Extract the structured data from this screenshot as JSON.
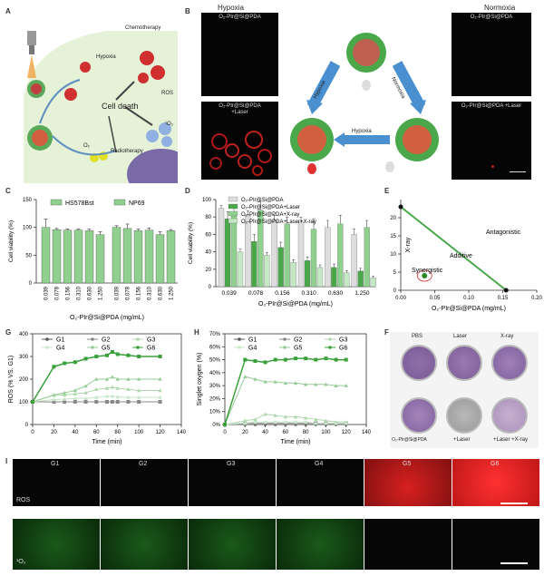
{
  "panels": {
    "A": "A",
    "B": "B",
    "C": "C",
    "D": "D",
    "E": "E",
    "F": "F",
    "G": "G",
    "H": "H",
    "I": "I"
  },
  "panelA": {
    "chemotherapy": "Chemotherapy",
    "hypoxia": "Hypoxia",
    "ros": "ROS",
    "cell_death": "Cell death",
    "singlet": "¹O₂",
    "o2": "O₂",
    "radiotherapy": "Radiotherapy"
  },
  "panelB": {
    "hypoxia_title": "Hypoxia",
    "normoxia_title": "Normoxia",
    "img1": "O₂-PIr@Si@PDA",
    "img2": "O₂-PIr@Si@PDA +Laser",
    "img3": "O₂-PIr@Si@PDA",
    "img4": "O₂-PIr@Si@PDA +Laser",
    "arrow_hypoxia": "Hypoxia",
    "arrow_normoxia": "Normoxia",
    "arrow_bottom": "Hypoxia"
  },
  "colors": {
    "green_dark": "#4aa84a",
    "green_mid": "#8fd08f",
    "green_light": "#c4e7c4",
    "gray_bar": "#dddddd",
    "arrow_blue": "#4a90d0",
    "ros_red": "#e02020",
    "o2_green": "#2a8a2a"
  },
  "chart_data": [
    {
      "panel": "C",
      "type": "bar",
      "ylabel": "Cell viability (%)",
      "xlabel": "O₂-PIr@Si@PDA   (mg/mL)",
      "ylim": [
        0,
        150
      ],
      "yticks": [
        "0",
        "50",
        "100",
        "150"
      ],
      "legend": [
        "HS578Bst",
        "NP69"
      ],
      "groups": [
        {
          "name": "HS578Bst",
          "categories": [
            "0.039",
            "0.078",
            "0.156",
            "0.310",
            "0.630",
            "1.250"
          ],
          "values": [
            100,
            96,
            95,
            95,
            94,
            87
          ],
          "errors": [
            15,
            2,
            2,
            2,
            3,
            5
          ]
        },
        {
          "name": "NP69",
          "categories": [
            "0.039",
            "0.078",
            "0.156",
            "0.310",
            "0.630",
            "1.250"
          ],
          "values": [
            100,
            98,
            94,
            95,
            87,
            94
          ],
          "errors": [
            3,
            8,
            3,
            4,
            5,
            2
          ]
        }
      ]
    },
    {
      "panel": "D",
      "type": "bar",
      "ylabel": "Cell viability (%)",
      "xlabel": "O₂-PIr@Si@PDA (mg/mL)",
      "ylim": [
        0,
        100
      ],
      "yticks": [
        "0",
        "20",
        "40",
        "60",
        "80",
        "100"
      ],
      "categories": [
        "0.039",
        "0.078",
        "0.156",
        "0.310",
        "0.630",
        "1.250"
      ],
      "series": [
        {
          "name": "O₂-PIr@Si@PDA",
          "values": [
            90,
            82,
            76,
            74,
            68,
            60
          ],
          "errors": [
            3,
            5,
            6,
            6,
            8,
            6
          ]
        },
        {
          "name": "O₂-PIr@Si@PDA+Laser",
          "values": [
            78,
            52,
            45,
            30,
            22,
            18
          ],
          "errors": [
            8,
            8,
            6,
            4,
            4,
            3
          ]
        },
        {
          "name": "O₂-PIr@Si@PDA+X-ray",
          "values": [
            82,
            88,
            72,
            66,
            72,
            68
          ],
          "errors": [
            10,
            10,
            8,
            12,
            10,
            8
          ]
        },
        {
          "name": "O₂-PIr@Si@PDA+Laser+X-ray",
          "values": [
            40,
            36,
            28,
            22,
            16,
            10
          ],
          "errors": [
            3,
            3,
            3,
            3,
            2,
            2
          ]
        }
      ]
    },
    {
      "panel": "E",
      "type": "line",
      "xlabel": "O₂-PIr@Si@PDA (mg/mL)",
      "ylabel": "X-ray",
      "xlim": [
        0,
        0.2
      ],
      "ylim": [
        0,
        25
      ],
      "xticks": [
        "0.00",
        "0.05",
        "0.10",
        "0.15",
        "0.20"
      ],
      "yticks": [
        "0",
        "5",
        "10",
        "15",
        "20"
      ],
      "line": {
        "x": [
          0.0,
          0.155
        ],
        "y": [
          23,
          0
        ]
      },
      "point": {
        "x": 0.035,
        "y": 4
      },
      "annotations": [
        "Antagonistic",
        "Additive",
        "Synergistic"
      ]
    },
    {
      "panel": "G",
      "type": "line",
      "xlabel": "Time (min)",
      "ylabel": "ROS (% VS. G1)",
      "xlim": [
        0,
        140
      ],
      "ylim": [
        0,
        400
      ],
      "xticks": [
        "0",
        "20",
        "40",
        "60",
        "80",
        "100",
        "120",
        "140"
      ],
      "yticks": [
        "0",
        "100",
        "200",
        "300",
        "400"
      ],
      "x": [
        0,
        20,
        30,
        40,
        50,
        60,
        70,
        75,
        80,
        90,
        100,
        120
      ],
      "series": [
        {
          "name": "G1",
          "values": [
            100,
            100,
            100,
            100,
            100,
            100,
            100,
            100,
            100,
            100,
            100,
            100
          ]
        },
        {
          "name": "G2",
          "values": [
            100,
            100,
            100,
            100,
            100,
            100,
            100,
            100,
            100,
            100,
            100,
            100
          ]
        },
        {
          "name": "G3",
          "values": [
            100,
            130,
            130,
            135,
            140,
            155,
            160,
            165,
            160,
            155,
            150,
            150
          ]
        },
        {
          "name": "G4",
          "values": [
            100,
            110,
            112,
            115,
            115,
            120,
            125,
            125,
            122,
            120,
            120,
            120
          ]
        },
        {
          "name": "G5",
          "values": [
            100,
            130,
            140,
            150,
            170,
            200,
            200,
            210,
            200,
            200,
            200,
            200
          ]
        },
        {
          "name": "G6",
          "values": [
            100,
            255,
            270,
            275,
            290,
            300,
            305,
            320,
            310,
            305,
            300,
            300
          ]
        }
      ]
    },
    {
      "panel": "H",
      "type": "line",
      "xlabel": "Time (min)",
      "ylabel": "Singlet oxygen (%)",
      "xlim": [
        0,
        140
      ],
      "ylim": [
        0,
        70
      ],
      "xticks": [
        "0",
        "20",
        "40",
        "60",
        "80",
        "100",
        "120",
        "140"
      ],
      "yticks": [
        "0%",
        "10%",
        "20%",
        "30%",
        "40%",
        "50%",
        "60%",
        "70%"
      ],
      "x": [
        0,
        20,
        30,
        40,
        50,
        60,
        70,
        80,
        90,
        100,
        110,
        120
      ],
      "series": [
        {
          "name": "G1",
          "values": [
            0,
            0,
            0,
            0,
            0,
            0,
            0,
            0,
            0,
            0,
            0,
            0
          ]
        },
        {
          "name": "G2",
          "values": [
            0,
            1,
            1,
            1,
            1,
            1,
            1,
            1,
            1,
            1,
            1,
            1
          ]
        },
        {
          "name": "G3",
          "values": [
            0,
            3,
            4,
            8,
            7,
            6,
            6,
            5,
            4,
            3,
            2,
            2
          ]
        },
        {
          "name": "G4",
          "values": [
            0,
            1,
            2,
            2,
            2,
            2,
            2,
            2,
            1,
            1,
            1,
            1
          ]
        },
        {
          "name": "G5",
          "values": [
            0,
            37,
            35,
            33,
            33,
            32,
            32,
            31,
            31,
            31,
            30,
            30
          ]
        },
        {
          "name": "G6",
          "values": [
            0,
            50,
            49,
            48,
            50,
            50,
            51,
            51,
            50,
            51,
            50,
            50
          ]
        }
      ]
    }
  ],
  "panelF": {
    "labels": [
      "PBS",
      "Laser",
      "X-ray",
      "O₂-PIr@Si@PDA",
      "+Laser",
      "+Laser +X-ray"
    ]
  },
  "panelI": {
    "groups": [
      "G1",
      "G2",
      "G3",
      "G4",
      "G5",
      "G6"
    ],
    "row_ros": "ROS",
    "row_o2": "¹O₂"
  }
}
